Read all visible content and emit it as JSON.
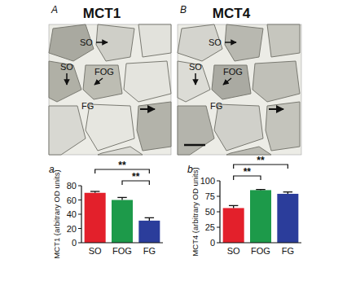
{
  "panels": [
    {
      "letter": "A",
      "title": "MCT1",
      "labels": [
        "SO",
        "SO",
        "FOG",
        "FG"
      ]
    },
    {
      "letter": "B",
      "title": "MCT4",
      "labels": [
        "SO",
        "SO",
        "FOG",
        "FG"
      ]
    }
  ],
  "chart_data": [
    {
      "type": "bar",
      "title": "a",
      "categories": [
        "SO",
        "FOG",
        "FG"
      ],
      "values": [
        70,
        60,
        31
      ],
      "errors": [
        2,
        3.5,
        4
      ],
      "colors": [
        "#e3202b",
        "#1d9a4a",
        "#2b3d9b"
      ],
      "ylabel": "MCT1 (arbitrary OD units)",
      "ylim": [
        0,
        80
      ],
      "yticks": [
        0,
        20,
        40,
        60,
        80
      ],
      "annotations": [
        {
          "from": 1,
          "to": 2,
          "text": "**"
        },
        {
          "from": 0,
          "to": 2,
          "text": "**"
        }
      ]
    },
    {
      "type": "bar",
      "title": "b",
      "categories": [
        "SO",
        "FOG",
        "FG"
      ],
      "values": [
        56,
        85,
        79
      ],
      "errors": [
        4,
        1,
        3
      ],
      "colors": [
        "#e3202b",
        "#1d9a4a",
        "#2b3d9b"
      ],
      "ylabel": "MCT4 (arbitrary OD units)",
      "ylim": [
        0,
        100
      ],
      "yticks": [
        0,
        25,
        50,
        75,
        100
      ],
      "annotations": [
        {
          "from": 0,
          "to": 1,
          "text": "**"
        },
        {
          "from": 0,
          "to": 2,
          "text": "**"
        }
      ]
    }
  ]
}
